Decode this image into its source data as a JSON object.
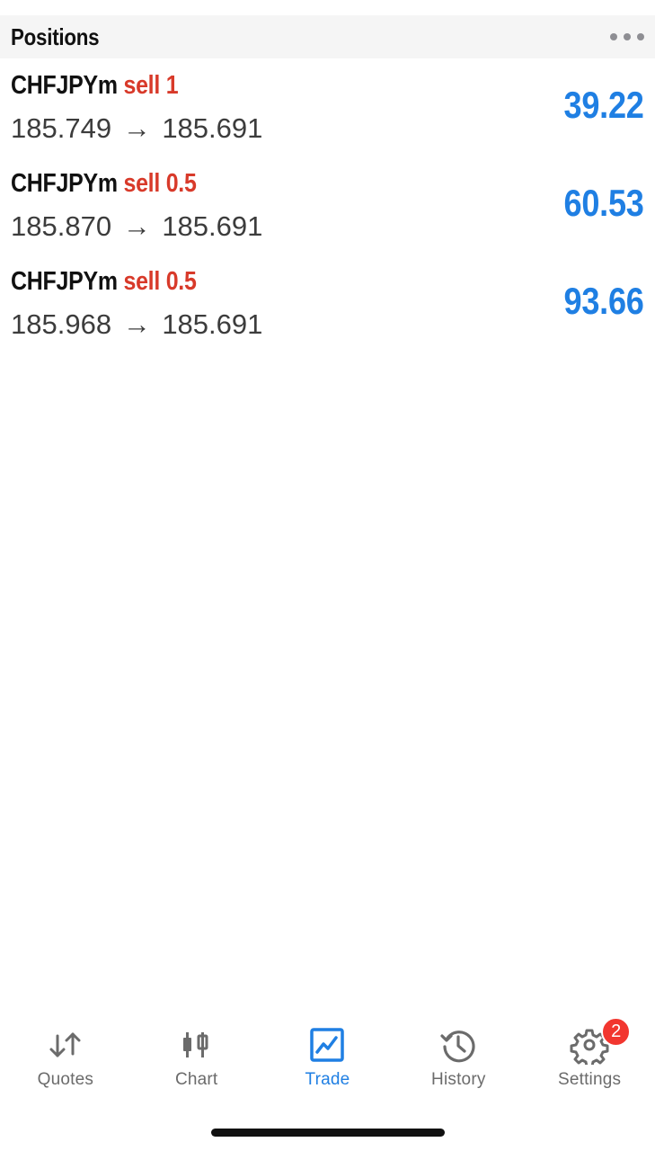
{
  "header": {
    "title": "Positions",
    "more_icon": "ellipsis-icon"
  },
  "positions": [
    {
      "symbol": "CHFJPYm",
      "side": "sell",
      "volume": "1",
      "open_price": "185.749",
      "arrow": "→",
      "current_price": "185.691",
      "profit": "39.22"
    },
    {
      "symbol": "CHFJPYm",
      "side": "sell",
      "volume": "0.5",
      "open_price": "185.870",
      "arrow": "→",
      "current_price": "185.691",
      "profit": "60.53"
    },
    {
      "symbol": "CHFJPYm",
      "side": "sell",
      "volume": "0.5",
      "open_price": "185.968",
      "arrow": "→",
      "current_price": "185.691",
      "profit": "93.66"
    }
  ],
  "tabs": [
    {
      "label": "Quotes",
      "icon": "quotes-arrows-icon",
      "active": false
    },
    {
      "label": "Chart",
      "icon": "candlestick-chart-icon",
      "active": false
    },
    {
      "label": "Trade",
      "icon": "trade-chart-icon",
      "active": true
    },
    {
      "label": "History",
      "icon": "history-clock-icon",
      "active": false
    },
    {
      "label": "Settings",
      "icon": "gear-icon",
      "active": false,
      "badge": "2"
    }
  ],
  "colors": {
    "accent": "#1f7fe3",
    "sell": "#d83a2a",
    "badge": "#f2362f",
    "inactive": "#6b6b6b"
  }
}
